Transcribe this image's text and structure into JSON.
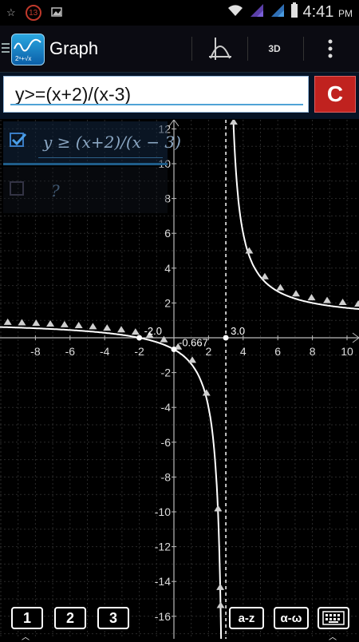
{
  "status_bar": {
    "notification_count": "13",
    "time": "4:41",
    "ampm": "PM"
  },
  "app_bar": {
    "title": "Graph",
    "btn_3d": "3D",
    "icons": [
      "menu-icon",
      "graph-app-icon",
      "function-plot-icon",
      "overflow-menu-icon"
    ]
  },
  "formula": {
    "value": "y>=(x+2)/(x-3)",
    "clear_label": "C"
  },
  "equations": [
    {
      "text": "y ≥ (x+2)/(x − 3)",
      "checked": true
    },
    {
      "text": "?",
      "checked": false
    }
  ],
  "graph": {
    "x_ticks": [
      "-8",
      "-6",
      "-4",
      "-2",
      "2",
      "4",
      "6",
      "8",
      "10"
    ],
    "y_ticks": [
      "12",
      "10",
      "8",
      "6",
      "4",
      "2",
      "-2",
      "-4",
      "-6",
      "-8",
      "-10",
      "-12",
      "-14",
      "-16"
    ],
    "point_labels": [
      "-2.0",
      "-0.667",
      "3.0"
    ],
    "asymptote_x": 3,
    "function": "y >= (x+2)/(x-3)",
    "curve_color": "#ffffff",
    "grid_color": "#2a2a2a"
  },
  "bottom_bar": {
    "buttons": [
      "1",
      "2",
      "3",
      "a-z",
      "α-ω"
    ],
    "keyboard_icon": "keyboard-icon"
  }
}
